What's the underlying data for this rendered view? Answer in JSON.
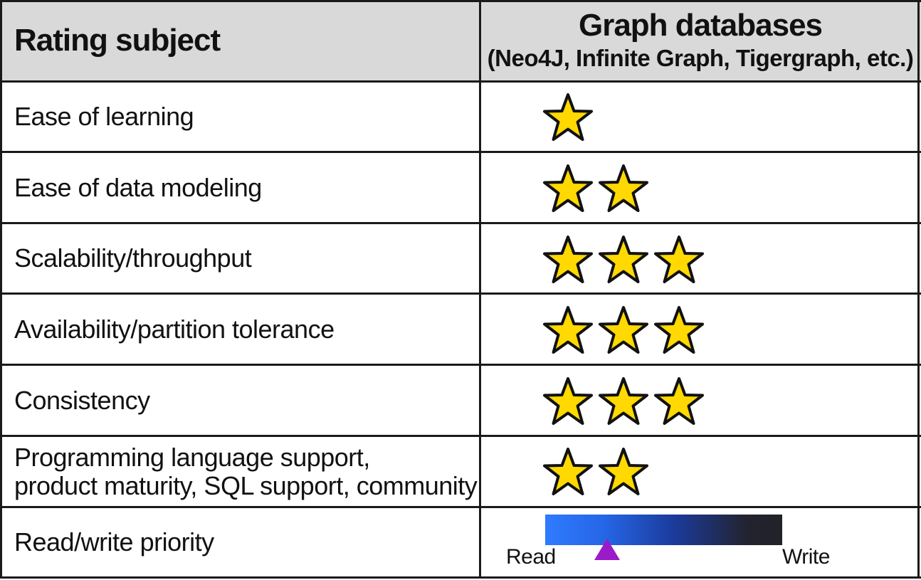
{
  "header": {
    "left_label": "Rating subject",
    "right_title": "Graph databases",
    "right_subtitle": "(Neo4J, Infinite Graph, Tigergraph, etc.)"
  },
  "rows": [
    {
      "subject": "Ease of learning",
      "stars": 1
    },
    {
      "subject": "Ease of data modeling",
      "stars": 2
    },
    {
      "subject": "Scalability/throughput",
      "stars": 3
    },
    {
      "subject": "Availability/partition tolerance",
      "stars": 3
    },
    {
      "subject": "Consistency",
      "stars": 3
    },
    {
      "subject": "Programming language support,",
      "subject_line2": "product maturity, SQL support, community",
      "stars": 2
    },
    {
      "subject": "Read/write priority"
    }
  ],
  "slider": {
    "left_label": "Read",
    "right_label": "Write",
    "position_fraction": 0.26,
    "marker_color": "#9b1ac9",
    "gradient_start": "#2f7bff",
    "gradient_end": "#222228"
  },
  "colors": {
    "star_fill": "#ffd900",
    "star_stroke": "#111111",
    "header_bg": "#d9d9d9",
    "grid": "#1a1a1a"
  },
  "icons": {
    "rating": "star-icon",
    "marker": "triangle-up-icon"
  }
}
